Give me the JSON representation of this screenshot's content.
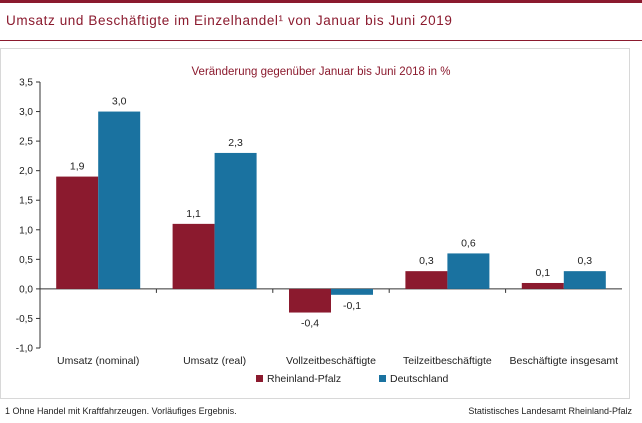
{
  "title": "Umsatz und Beschäftigte im Einzelhandel¹ von Januar bis Juni 2019",
  "footnote": "1 Ohne Handel mit Kraftfahrzeugen. Vorläufiges Ergebnis.",
  "source": "Statistisches Landesamt Rheinland-Pfalz",
  "colors": {
    "accent": "#8b1a2e",
    "series1": "#8b1a2e",
    "series2": "#1a72a0"
  },
  "chart_data": {
    "type": "bar",
    "title": "Veränderung gegenüber Januar bis Juni 2018 in %",
    "categories": [
      "Umsatz (nominal)",
      "Umsatz (real)",
      "Vollzeitbeschäftigte",
      "Teilzeitbeschäftigte",
      "Beschäftigte insgesamt"
    ],
    "series": [
      {
        "name": "Rheinland-Pfalz",
        "values": [
          1.9,
          1.1,
          -0.4,
          0.3,
          0.1
        ],
        "labels": [
          "1,9",
          "1,1",
          "-0,4",
          "0,3",
          "0,1"
        ],
        "color": "#8b1a2e"
      },
      {
        "name": "Deutschland",
        "values": [
          3.0,
          2.3,
          -0.1,
          0.6,
          0.3
        ],
        "labels": [
          "3,0",
          "2,3",
          "-0,1",
          "0,6",
          "0,3"
        ],
        "color": "#1a72a0"
      }
    ],
    "ylim": [
      -1.0,
      3.5
    ],
    "yticks": [
      3.5,
      3.0,
      2.5,
      2.0,
      1.5,
      1.0,
      0.5,
      0.0,
      -0.5,
      -1.0
    ],
    "ytick_labels": [
      "3,5",
      "3,0",
      "2,5",
      "2,0",
      "1,5",
      "1,0",
      "0,5",
      "0,0",
      "-0,5",
      "-1,0"
    ],
    "grid": false,
    "legend": "bottom-center"
  }
}
